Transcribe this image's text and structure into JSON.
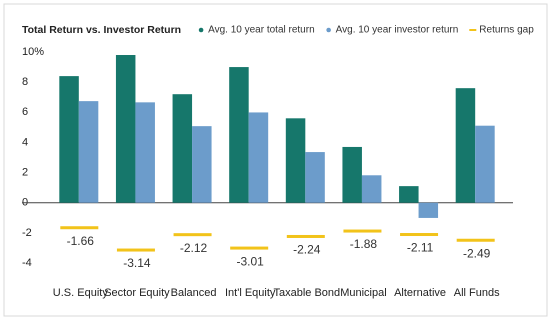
{
  "chart_data": {
    "type": "bar",
    "title": "Total Return vs. Investor Return",
    "categories": [
      "U.S. Equity",
      "Sector Equity",
      "Balanced",
      "Int'l Equity",
      "Taxable Bond",
      "Municipal",
      "Alternative",
      "All Funds"
    ],
    "series": [
      {
        "name": "Avg. 10 year total return",
        "color": "#16776b",
        "values": [
          8.4,
          9.8,
          7.2,
          9.0,
          5.6,
          3.7,
          1.1,
          7.6
        ]
      },
      {
        "name": "Avg. 10 year investor return",
        "color": "#6c9ccb",
        "values": [
          6.74,
          6.66,
          5.08,
          5.99,
          3.36,
          1.82,
          -1.01,
          5.11
        ]
      },
      {
        "name": "Returns gap",
        "color": "#f2c31a",
        "values": [
          -1.66,
          -3.14,
          -2.12,
          -3.01,
          -2.24,
          -1.88,
          -2.11,
          -2.49
        ]
      }
    ],
    "ylim": [
      -4,
      10
    ],
    "yticks": [
      -4,
      -2,
      0,
      2,
      4,
      6,
      8,
      {
        "value": 10,
        "label": "10%"
      }
    ],
    "grid": false
  }
}
